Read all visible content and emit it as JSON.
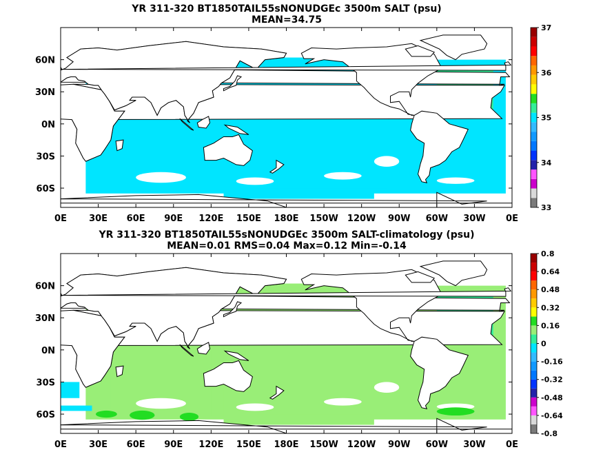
{
  "chart_data": [
    {
      "type": "heatmap",
      "title": "YR 311-320 BT1850TAIL55sNONUDGEc 3500m SALT (psu)",
      "subtitle": "MEAN=34.75",
      "x_ticks": [
        "0E",
        "30E",
        "60E",
        "90E",
        "120E",
        "150E",
        "180E",
        "150W",
        "120W",
        "90W",
        "60W",
        "30W",
        "0E"
      ],
      "y_ticks": [
        "60N",
        "30N",
        "0N",
        "30S",
        "60S"
      ],
      "xlim": [
        0,
        360
      ],
      "ylim": [
        -78,
        90
      ],
      "colorbar": {
        "min": 33,
        "max": 37,
        "labels": [
          "37",
          "36",
          "35",
          "34",
          "33"
        ],
        "colors": [
          "#7a7a7a",
          "#d9d9d9",
          "#cc00cc",
          "#ff55ff",
          "#2222aa",
          "#0033ff",
          "#0077ff",
          "#1199ff",
          "#33bbff",
          "#00e5ff",
          "#33ee99",
          "#22dd22",
          "#ffff00",
          "#ffcc00",
          "#ff9900",
          "#ff6600",
          "#ff0000",
          "#cc0000",
          "#990000"
        ]
      },
      "field_colors": {
        "dominant": "#00e5ff",
        "atlantic_north": "#33ee99",
        "land": "#ffffff"
      }
    },
    {
      "type": "heatmap",
      "title": "YR 311-320 BT1850TAIL55sNONUDGEc 3500m SALT-climatology (psu)",
      "subtitle": "MEAN=0.01   RMS=0.04   Max=0.12   Min=-0.14",
      "x_ticks": [
        "0E",
        "30E",
        "60E",
        "90E",
        "120E",
        "150E",
        "180E",
        "150W",
        "120W",
        "90W",
        "60W",
        "30W",
        "0E"
      ],
      "y_ticks": [
        "60N",
        "30N",
        "0N",
        "30S",
        "60S"
      ],
      "xlim": [
        0,
        360
      ],
      "ylim": [
        -78,
        90
      ],
      "colorbar": {
        "min": -0.8,
        "max": 0.8,
        "labels": [
          "0.8",
          "0.64",
          "0.48",
          "0.32",
          "0.16",
          "0",
          "-0.16",
          "-0.32",
          "-0.48",
          "-0.64",
          "-0.8"
        ],
        "colors": [
          "#7a7a7a",
          "#d9d9d9",
          "#ff55ff",
          "#cc00cc",
          "#2222aa",
          "#0033ff",
          "#0077ff",
          "#1199ff",
          "#33bbff",
          "#00e5ff",
          "#33ee99",
          "#99ee77",
          "#22dd22",
          "#ffff00",
          "#ffcc00",
          "#ff9900",
          "#ff6600",
          "#ff0000",
          "#cc0000",
          "#990000"
        ]
      },
      "field_colors": {
        "dominant": "#99ee77",
        "positive": "#22dd22",
        "negative": "#00e5ff",
        "slightly_negative": "#33ee99",
        "land": "#ffffff"
      }
    }
  ]
}
